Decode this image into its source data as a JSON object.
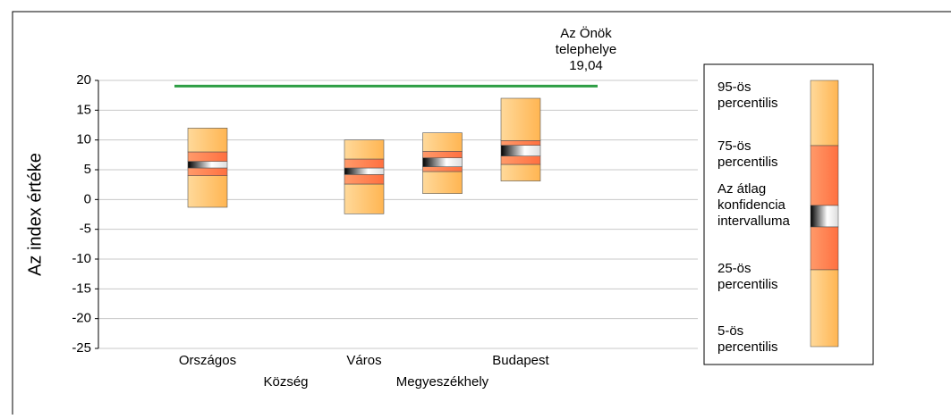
{
  "chart_data": {
    "type": "percentile-box",
    "y_label": "Az index értéke",
    "categories": [
      "Országos",
      "Község",
      "Város",
      "Megyeszékhely",
      "Budapest"
    ],
    "p5": [
      -1.3,
      null,
      -2.4,
      1,
      3.1
    ],
    "p25": [
      4,
      null,
      2.6,
      4.7,
      5.9
    ],
    "ci_low": [
      5.3,
      null,
      4.2,
      5.5,
      7.3
    ],
    "ci_high": [
      6.4,
      null,
      5.3,
      7,
      9.1
    ],
    "p75": [
      8,
      null,
      6.8,
      8.1,
      9.9
    ],
    "p95": [
      12,
      null,
      10,
      11.2,
      17
    ],
    "ylim": [
      -25,
      20
    ],
    "yticks": [
      20,
      15,
      10,
      5,
      0,
      -5,
      -10,
      -15,
      -20,
      -25
    ],
    "grid": true,
    "reference": {
      "label_lines": [
        "Az Önök",
        "telephelye"
      ],
      "value": 19.04,
      "value_label": "19,04",
      "color": "#2e9e44"
    },
    "colors": {
      "outer": "#ffbf66",
      "inner": "#ff8050"
    },
    "legend": [
      [
        "95-ös",
        "percentilis"
      ],
      [
        "75-ös",
        "percentilis"
      ],
      [
        "Az átlag",
        "konfidencia",
        "intervalluma"
      ],
      [
        "25-ös",
        "percentilis"
      ],
      [
        "5-ös",
        "percentilis"
      ]
    ]
  }
}
